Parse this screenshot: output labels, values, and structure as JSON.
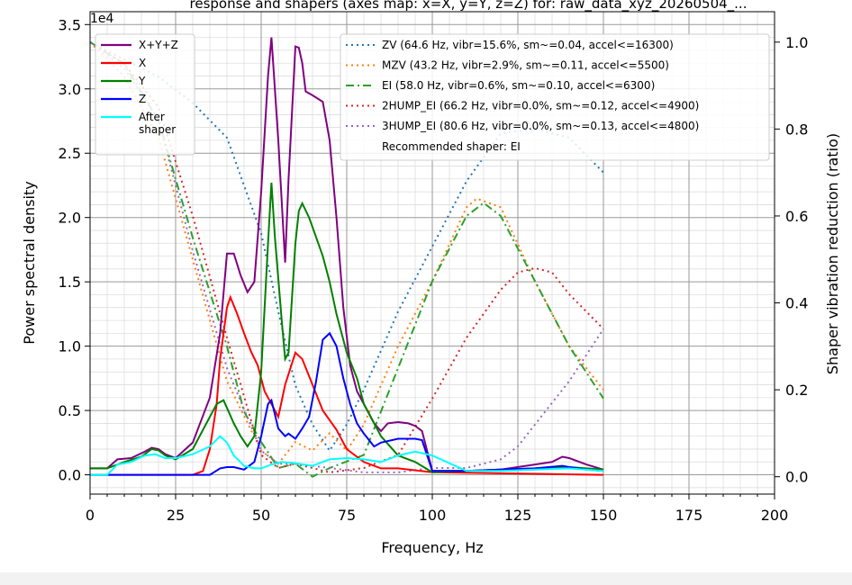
{
  "chart_data": {
    "type": "line",
    "title": "Frequency response and shapers (axes map: x=X, y=Y, z=Z) for: raw_data_x_...",
    "title_visible": "response and shapers (axes map: x=X, y=Y, z=Z) for: raw_data_xyz_20260504_...",
    "xlabel": "Frequency, Hz",
    "ylabel": "Power spectral density",
    "y2label": "Shaper vibration reduction (ratio)",
    "y_offset_label": "1e4",
    "xlim": [
      0,
      200
    ],
    "ylim": [
      -0.15,
      3.6
    ],
    "y2lim": [
      -0.04,
      1.07
    ],
    "x_ticks": [
      0,
      25,
      50,
      75,
      100,
      125,
      150,
      175,
      200
    ],
    "y_ticks": [
      0.0,
      0.5,
      1.0,
      1.5,
      2.0,
      2.5,
      3.0,
      3.5
    ],
    "y2_ticks": [
      0.0,
      0.2,
      0.4,
      0.6,
      0.8,
      1.0
    ],
    "grid": true,
    "legend_left_placement": "top-left",
    "legend_right_placement": "top-right",
    "recommended_text": "Recommended shaper: EI",
    "psd_series": [
      {
        "name": "X+Y+Z",
        "color": "#800080",
        "x": [
          0,
          5,
          8,
          12,
          16,
          18,
          20,
          22,
          25,
          30,
          35,
          38,
          40,
          42,
          44,
          46,
          48,
          50,
          52,
          53,
          55,
          57,
          58,
          60,
          61,
          62,
          63,
          65,
          68,
          70,
          72,
          74,
          76,
          78,
          80,
          83,
          85,
          87,
          90,
          93,
          95,
          97,
          100,
          110,
          120,
          130,
          135,
          138,
          140,
          145,
          150
        ],
        "y": [
          0.05,
          0.05,
          0.12,
          0.13,
          0.18,
          0.21,
          0.2,
          0.16,
          0.13,
          0.25,
          0.6,
          1.1,
          1.72,
          1.72,
          1.55,
          1.42,
          1.5,
          2.2,
          3.1,
          3.4,
          2.6,
          1.65,
          2.3,
          3.33,
          3.32,
          3.2,
          2.98,
          2.95,
          2.9,
          2.6,
          2.0,
          1.3,
          0.85,
          0.65,
          0.55,
          0.4,
          0.34,
          0.4,
          0.41,
          0.4,
          0.38,
          0.34,
          0.03,
          0.03,
          0.04,
          0.08,
          0.1,
          0.14,
          0.13,
          0.08,
          0.04
        ]
      },
      {
        "name": "X",
        "color": "#ff0000",
        "x": [
          0,
          5,
          30,
          33,
          35,
          37,
          38,
          40,
          41,
          43,
          45,
          47,
          49,
          51,
          53,
          55,
          57,
          60,
          62,
          65,
          68,
          72,
          75,
          80,
          85,
          90,
          100,
          150
        ],
        "y": [
          0,
          0,
          0,
          0.03,
          0.2,
          0.55,
          0.9,
          1.3,
          1.38,
          1.25,
          1.1,
          0.96,
          0.85,
          0.65,
          0.55,
          0.45,
          0.7,
          0.95,
          0.9,
          0.7,
          0.5,
          0.35,
          0.2,
          0.1,
          0.05,
          0.05,
          0.02,
          0
        ]
      },
      {
        "name": "Y",
        "color": "#008000",
        "x": [
          0,
          5,
          10,
          15,
          18,
          20,
          22,
          25,
          30,
          35,
          37,
          39,
          40,
          42,
          44,
          46,
          48,
          50,
          52,
          53,
          54,
          56,
          57,
          58,
          60,
          61,
          62,
          64,
          66,
          68,
          70,
          72,
          75,
          78,
          80,
          85,
          90,
          95,
          100,
          110,
          120,
          130,
          140,
          150
        ],
        "y": [
          0.05,
          0.05,
          0.1,
          0.14,
          0.2,
          0.19,
          0.15,
          0.12,
          0.2,
          0.45,
          0.55,
          0.58,
          0.52,
          0.4,
          0.3,
          0.22,
          0.3,
          0.8,
          1.8,
          2.27,
          1.85,
          1.2,
          0.9,
          0.95,
          1.8,
          2.05,
          2.11,
          2.0,
          1.85,
          1.7,
          1.5,
          1.25,
          0.95,
          0.75,
          0.55,
          0.3,
          0.15,
          0.1,
          0.02,
          0.03,
          0.04,
          0.05,
          0.06,
          0.04
        ]
      },
      {
        "name": "Z",
        "color": "#0000ff",
        "x": [
          0,
          5,
          30,
          35,
          38,
          40,
          42,
          45,
          48,
          50,
          52,
          53,
          55,
          57,
          58,
          60,
          62,
          64,
          66,
          68,
          70,
          72,
          74,
          76,
          78,
          80,
          83,
          85,
          90,
          95,
          97,
          100,
          110,
          120,
          130,
          138,
          140,
          145,
          150
        ],
        "y": [
          0,
          0,
          0,
          0,
          0.05,
          0.06,
          0.06,
          0.04,
          0.1,
          0.3,
          0.55,
          0.58,
          0.36,
          0.3,
          0.32,
          0.28,
          0.36,
          0.45,
          0.72,
          1.05,
          1.1,
          1.0,
          0.75,
          0.55,
          0.4,
          0.32,
          0.22,
          0.25,
          0.28,
          0.28,
          0.27,
          0.03,
          0.03,
          0.04,
          0.05,
          0.07,
          0.06,
          0.04,
          0.03
        ]
      },
      {
        "name": "After\nshaper",
        "color": "#00ffff",
        "x": [
          0,
          5,
          8,
          12,
          16,
          19,
          22,
          25,
          30,
          35,
          38,
          40,
          42,
          45,
          48,
          50,
          53,
          56,
          60,
          65,
          70,
          75,
          80,
          85,
          90,
          95,
          100,
          110,
          120,
          130,
          140,
          150
        ],
        "y": [
          0,
          0,
          0.08,
          0.1,
          0.15,
          0.16,
          0.13,
          0.13,
          0.16,
          0.22,
          0.3,
          0.25,
          0.15,
          0.07,
          0.05,
          0.05,
          0.08,
          0.1,
          0.09,
          0.07,
          0.12,
          0.13,
          0.12,
          0.1,
          0.15,
          0.18,
          0.15,
          0.03,
          0.03,
          0.04,
          0.05,
          0.03
        ]
      }
    ],
    "shaper_series": [
      {
        "name": "ZV (64.6 Hz, vibr=15.6%, sm~=0.04, accel<=16300)",
        "color": "#1f77b4",
        "style": "dotted",
        "x": [
          0,
          10,
          20,
          30,
          40,
          50,
          55,
          60,
          65,
          70,
          75,
          80,
          90,
          100,
          110,
          120,
          130,
          140,
          150
        ],
        "y": [
          1.0,
          0.96,
          0.92,
          0.86,
          0.78,
          0.56,
          0.38,
          0.21,
          0.12,
          0.06,
          0.12,
          0.2,
          0.38,
          0.53,
          0.68,
          0.79,
          0.8,
          0.78,
          0.7
        ]
      },
      {
        "name": "MZV (43.2 Hz, vibr=2.9%, sm~=0.11, accel<=5500)",
        "color": "#ff7f0e",
        "style": "dotted",
        "x": [
          0,
          10,
          20,
          30,
          40,
          50,
          55,
          60,
          65,
          70,
          75,
          80,
          90,
          100,
          110,
          113,
          120,
          130,
          140,
          150
        ],
        "y": [
          1.0,
          0.92,
          0.78,
          0.5,
          0.22,
          0.06,
          0.03,
          0.08,
          0.06,
          0.1,
          0.06,
          0.12,
          0.3,
          0.45,
          0.62,
          0.64,
          0.62,
          0.45,
          0.3,
          0.2
        ]
      },
      {
        "name": "EI (58.0 Hz, vibr=0.6%, sm~=0.10, accel<=6300)",
        "color": "#2ca02c",
        "style": "dashdot",
        "x": [
          0,
          10,
          20,
          30,
          40,
          45,
          50,
          55,
          60,
          65,
          70,
          80,
          90,
          100,
          110,
          115,
          120,
          130,
          140,
          150
        ],
        "y": [
          1.0,
          0.95,
          0.82,
          0.55,
          0.3,
          0.15,
          0.08,
          0.02,
          0.03,
          0.0,
          0.02,
          0.05,
          0.25,
          0.45,
          0.6,
          0.63,
          0.6,
          0.45,
          0.3,
          0.18
        ]
      },
      {
        "name": "2HUMP_EI (66.2 Hz, vibr=0.0%, sm~=0.12, accel<=4900)",
        "color": "#d62728",
        "style": "dotted",
        "x": [
          0,
          10,
          20,
          30,
          40,
          50,
          55,
          60,
          70,
          80,
          90,
          100,
          110,
          120,
          125,
          130,
          135,
          140,
          150
        ],
        "y": [
          1.0,
          0.95,
          0.85,
          0.6,
          0.32,
          0.05,
          0.02,
          0.03,
          0.01,
          0.02,
          0.05,
          0.18,
          0.32,
          0.43,
          0.47,
          0.48,
          0.47,
          0.42,
          0.34
        ]
      },
      {
        "name": "3HUMP_EI (80.6 Hz, vibr=0.0%, sm~=0.13, accel<=4800)",
        "color": "#9467bd",
        "style": "dotted",
        "x": [
          0,
          10,
          20,
          30,
          40,
          50,
          55,
          60,
          70,
          80,
          90,
          100,
          110,
          115,
          120,
          125,
          130,
          140,
          150
        ],
        "y": [
          1.0,
          0.94,
          0.82,
          0.52,
          0.25,
          0.06,
          0.03,
          0.03,
          0.02,
          0.01,
          0.01,
          0.02,
          0.02,
          0.03,
          0.04,
          0.07,
          0.12,
          0.22,
          0.34
        ]
      }
    ]
  }
}
